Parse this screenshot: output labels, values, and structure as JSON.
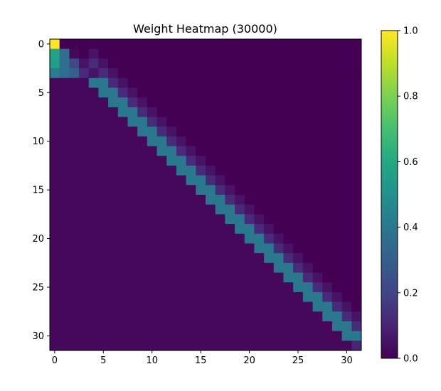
{
  "chart_data": {
    "type": "heatmap",
    "title": "Weight Heatmap (30000)",
    "rows": 32,
    "cols": 32,
    "vmin": 0.0,
    "vmax": 1.0,
    "colormap": "viridis",
    "x_ticks": [
      0,
      5,
      10,
      15,
      20,
      25,
      30
    ],
    "y_ticks": [
      0,
      5,
      10,
      15,
      20,
      25,
      30
    ],
    "colorbar_ticks": [
      "0.0",
      "0.2",
      "0.4",
      "0.6",
      "0.8",
      "1.0"
    ],
    "description_of_pattern": "",
    "rule": {
      "default": 0.0,
      "band_left_of_diagonal": 0.02,
      "diagonal": 0.4,
      "diagonal_plus_1": 0.4,
      "diagonal_plus_2": 0.12,
      "diagonal_plus_3": 0.05
    },
    "overrides": [
      {
        "row": 0,
        "col": 0,
        "value": 1.0
      },
      {
        "row": 0,
        "col": 1,
        "value": 0.0
      },
      {
        "row": 0,
        "col": 2,
        "value": 0.0
      },
      {
        "row": 0,
        "col": 3,
        "value": 0.0
      },
      {
        "row": 1,
        "col": 0,
        "value": 0.58
      },
      {
        "row": 1,
        "col": 1,
        "value": 0.36
      },
      {
        "row": 1,
        "col": 2,
        "value": 0.02
      },
      {
        "row": 1,
        "col": 3,
        "value": 0.0
      },
      {
        "row": 2,
        "col": 0,
        "value": 0.56
      },
      {
        "row": 2,
        "col": 1,
        "value": 0.36
      },
      {
        "row": 2,
        "col": 2,
        "value": 0.22
      },
      {
        "row": 2,
        "col": 3,
        "value": 0.05
      },
      {
        "row": 3,
        "col": 0,
        "value": 0.42
      },
      {
        "row": 3,
        "col": 1,
        "value": 0.36
      },
      {
        "row": 3,
        "col": 2,
        "value": 0.3
      },
      {
        "row": 3,
        "col": 3,
        "value": 0.12
      },
      {
        "row": 3,
        "col": 4,
        "value": 0.05
      },
      {
        "row": 31,
        "col": 31,
        "value": 0.1
      }
    ]
  }
}
